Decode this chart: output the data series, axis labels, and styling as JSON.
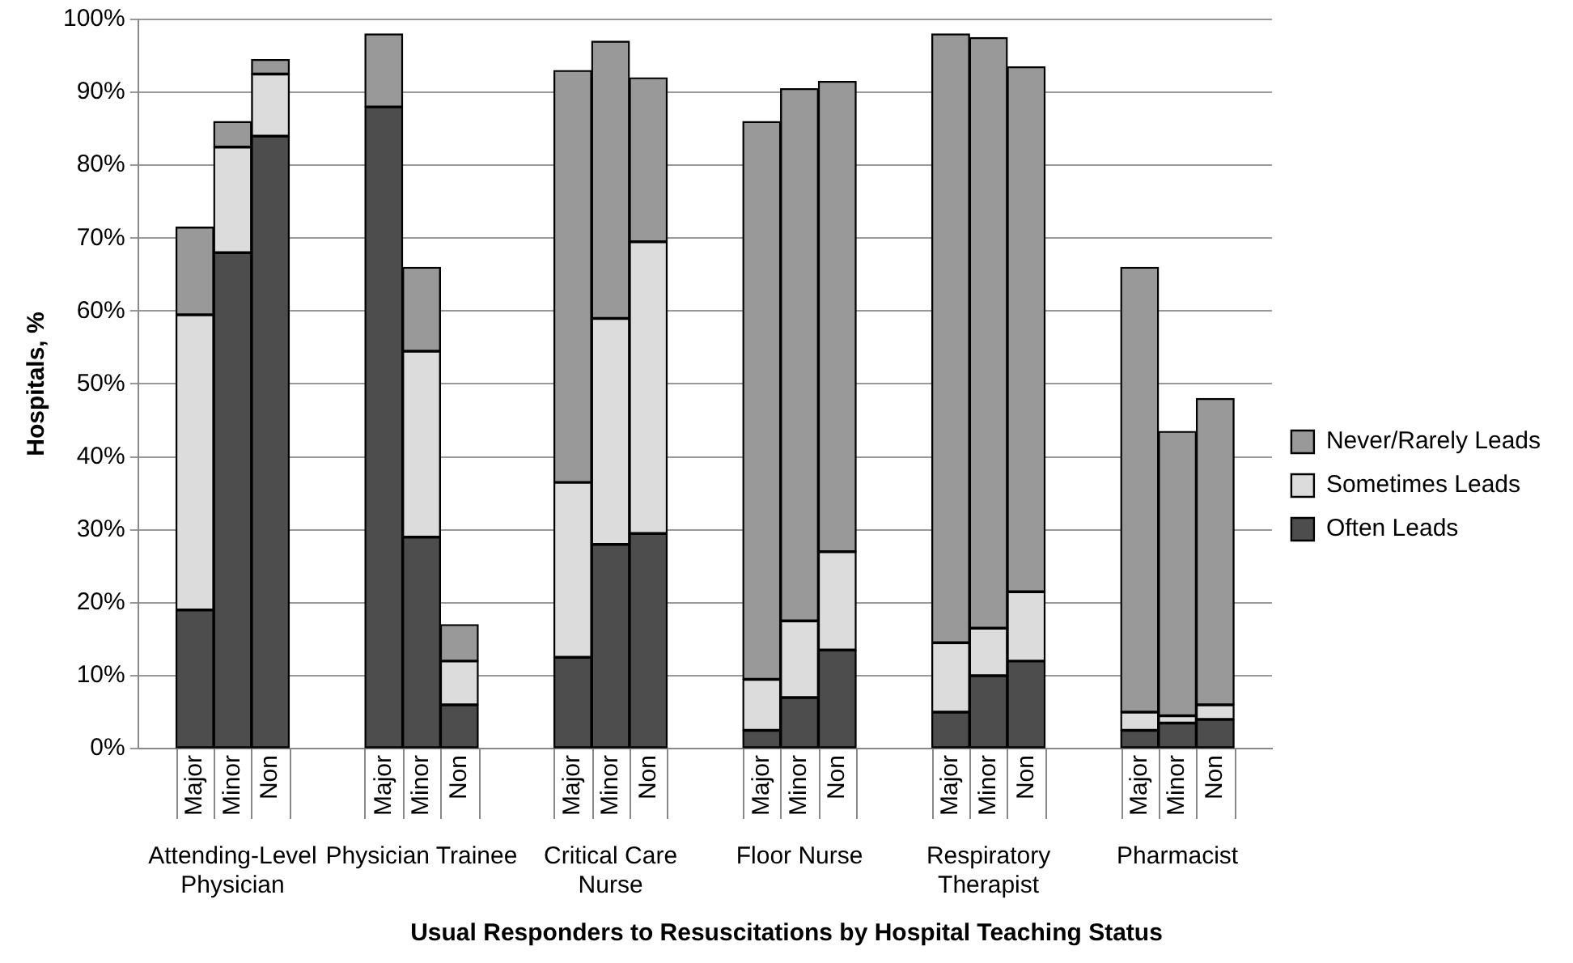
{
  "chart_data": {
    "type": "bar",
    "stacked": true,
    "title": "Usual Responders to Resuscitations by Hospital Teaching Status",
    "ylabel": "Hospitals, %",
    "categories": [
      null,
      "Major",
      "Minor",
      "Non",
      null,
      null,
      "Major",
      "Minor",
      "Non",
      null,
      null,
      "Major",
      "Minor",
      "Non",
      null,
      null,
      "Major",
      "Minor",
      "Non",
      null,
      null,
      "Major",
      "Minor",
      "Non",
      null,
      null,
      "Major",
      "Minor",
      "Non",
      null
    ],
    "annotations": [
      "Attending-Level Physician",
      "Physician Trainee",
      "Critical Care Nurse",
      "Floor Nurse",
      "Respiratory Therapist",
      "Pharmacist"
    ],
    "series": [
      {
        "name": "Often Leads",
        "color": "#4d4d4d",
        "values": [
          null,
          19,
          68,
          84,
          null,
          null,
          88,
          29,
          6,
          null,
          null,
          12.5,
          28,
          29.5,
          null,
          null,
          2.5,
          7,
          13.5,
          null,
          null,
          5,
          10,
          12,
          null,
          null,
          2.5,
          3.5,
          4,
          null
        ]
      },
      {
        "name": "Sometimes Leads",
        "color": "#dcdcdc",
        "values": [
          null,
          40.5,
          14.5,
          8.5,
          null,
          null,
          0,
          25.5,
          6,
          null,
          null,
          24,
          31,
          40,
          null,
          null,
          7,
          10.5,
          13.5,
          null,
          null,
          9.5,
          6.5,
          9.5,
          null,
          null,
          2.5,
          1,
          2,
          null
        ]
      },
      {
        "name": "Never/Rarely Leads",
        "color": "#999999",
        "values": [
          null,
          12,
          3.5,
          2,
          null,
          null,
          10,
          11.5,
          5,
          null,
          null,
          56.5,
          38,
          22.5,
          null,
          null,
          76.5,
          73,
          64.5,
          null,
          null,
          83.5,
          81,
          72,
          null,
          null,
          61,
          39,
          42,
          null
        ]
      }
    ],
    "ylim": [
      0,
      100
    ],
    "yticks": [
      {
        "value": 0,
        "label": "0%"
      },
      {
        "value": 10,
        "label": "10%"
      },
      {
        "value": 20,
        "label": "20%"
      },
      {
        "value": 30,
        "label": "30%"
      },
      {
        "value": 40,
        "label": "40%"
      },
      {
        "value": 50,
        "label": "50%"
      },
      {
        "value": 60,
        "label": "60%"
      },
      {
        "value": 70,
        "label": "70%"
      },
      {
        "value": 80,
        "label": "80%"
      },
      {
        "value": 90,
        "label": "90%"
      },
      {
        "value": 100,
        "label": "100%"
      }
    ],
    "grid": "y",
    "legend": "right"
  }
}
